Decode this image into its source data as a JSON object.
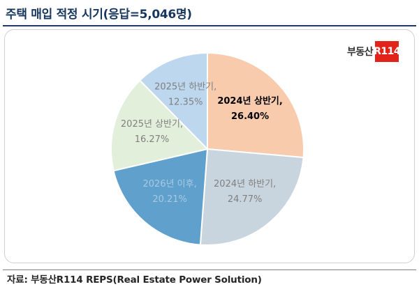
{
  "title": "주택 매입 적정 시기(응답=5,046명)",
  "source": "자료: 부동산R114 REPS(Real Estate Power Solution)",
  "logo": {
    "text": "부동산",
    "badge": "R114"
  },
  "chart_data": {
    "type": "pie",
    "title": "주택 매입 적정 시기(응답=5,046명)",
    "unit": "%",
    "slices": [
      {
        "label": "2024년 상반기",
        "value": 26.4,
        "value_text": "26.40%",
        "color": "#f8cbad",
        "label_color": "#000000",
        "bold": true
      },
      {
        "label": "2024년 하반기",
        "value": 24.77,
        "value_text": "24.77%",
        "color": "#c9d5de",
        "label_color": "#808080",
        "bold": false
      },
      {
        "label": "2026년 이후",
        "value": 20.21,
        "value_text": "20.21%",
        "color": "#5fa0cc",
        "label_color": "#a9c9e2",
        "bold": false
      },
      {
        "label": "2025년 상반기",
        "value": 16.27,
        "value_text": "16.27%",
        "color": "#e2efda",
        "label_color": "#808080",
        "bold": false
      },
      {
        "label": "2025년 하반기",
        "value": 12.35,
        "value_text": "12.35%",
        "color": "#bdd7ee",
        "label_color": "#808080",
        "bold": false
      }
    ]
  }
}
